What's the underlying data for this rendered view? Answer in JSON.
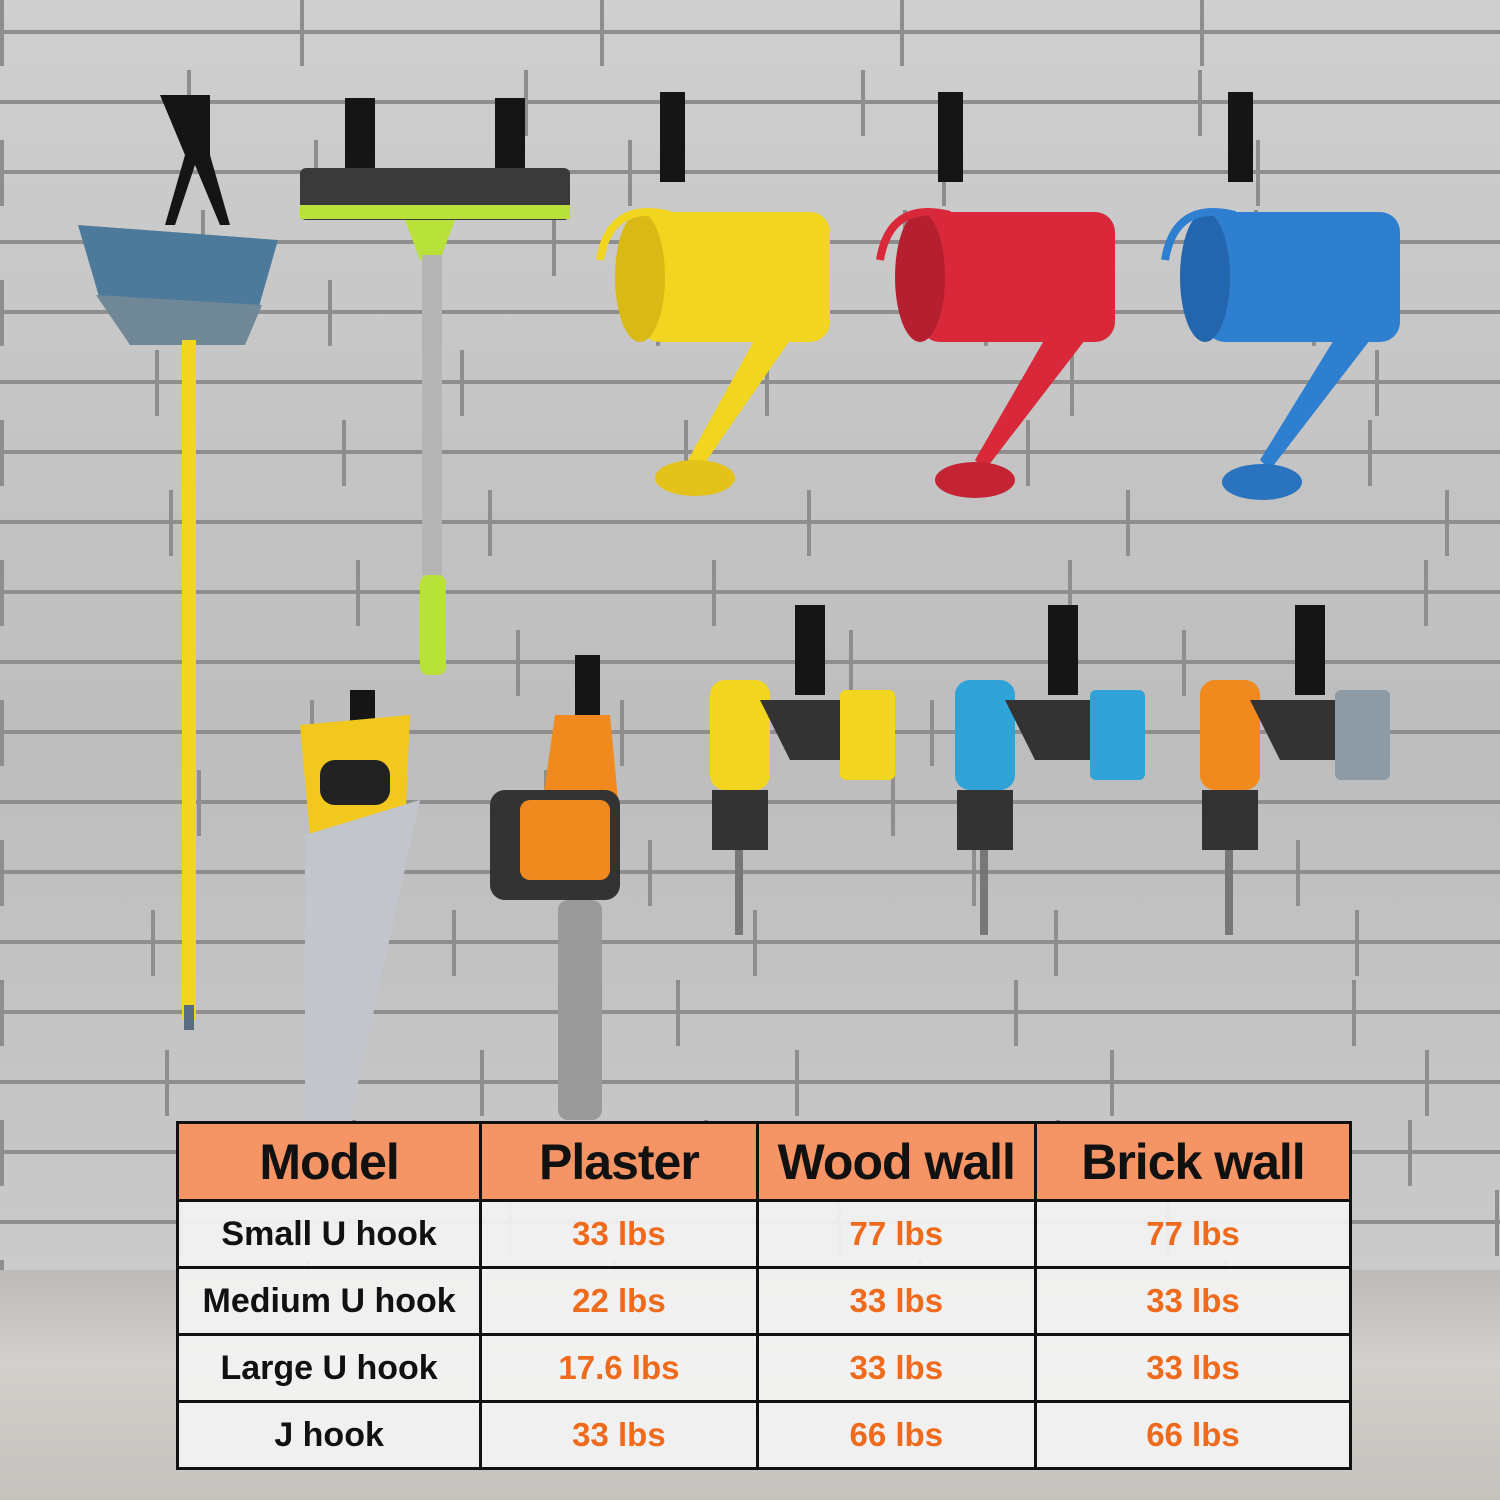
{
  "scene": {
    "items": [
      "broom",
      "squeegee",
      "watering-can-yellow",
      "watering-can-red",
      "watering-can-blue",
      "hand-saw",
      "chainsaw",
      "drill-yellow",
      "drill-blue",
      "drill-orange"
    ],
    "colors": {
      "yellow": "#f2d51e",
      "red": "#d8283a",
      "blue": "#2f7fd0",
      "orange": "#f08a1e",
      "lime": "#b8e23a",
      "hook": "#151515"
    }
  },
  "table": {
    "header": [
      "Model",
      "Plaster",
      "Wood wall",
      "Brick wall"
    ],
    "header_color": "#f59566",
    "value_color": "#ee6a1c",
    "rows": [
      {
        "model": "Small U hook",
        "values": [
          "33 lbs",
          "77 lbs",
          "77 lbs"
        ]
      },
      {
        "model": "Medium U hook",
        "values": [
          "22 lbs",
          "33 lbs",
          "33 lbs"
        ]
      },
      {
        "model": "Large U hook",
        "values": [
          "17.6 lbs",
          "33 lbs",
          "33 lbs"
        ]
      },
      {
        "model": "J hook",
        "values": [
          "33 lbs",
          "66 lbs",
          "66 lbs"
        ]
      }
    ]
  }
}
